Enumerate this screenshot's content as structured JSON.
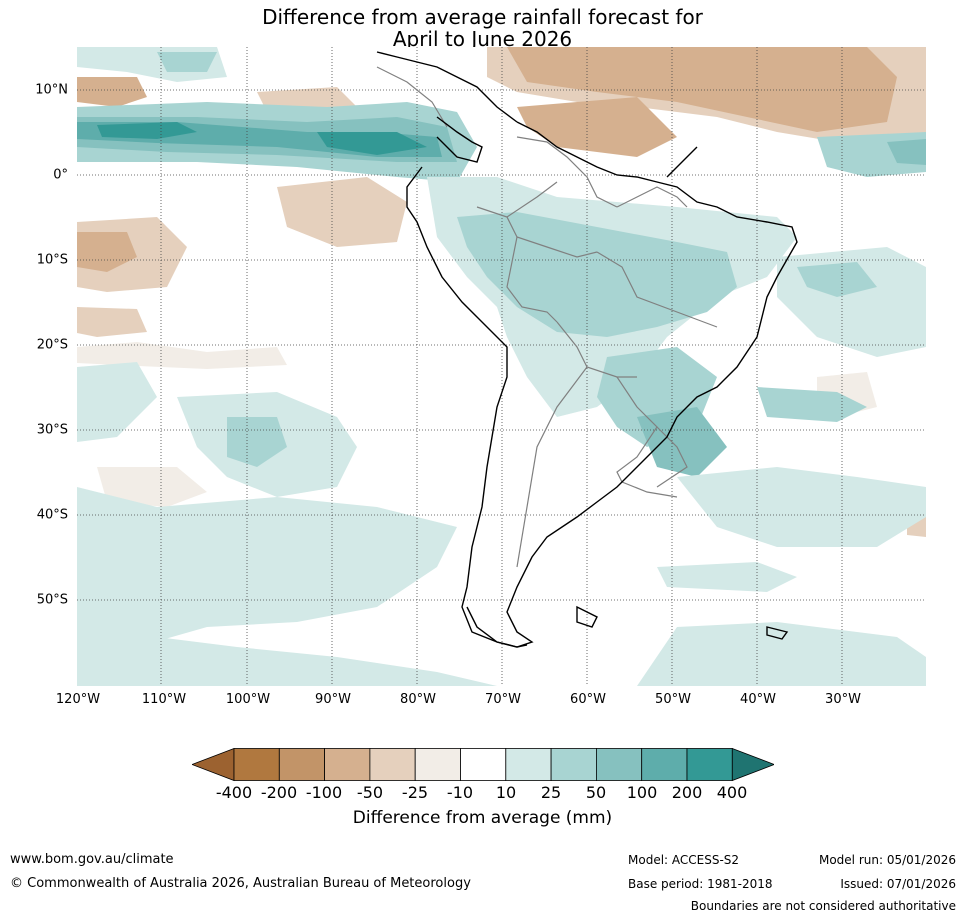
{
  "title_line1": "Difference from average rainfall forecast for",
  "title_line2": "April to June 2026",
  "map": {
    "region": "South America",
    "latitude_labels": [
      "10°N",
      "0°",
      "10°S",
      "20°S",
      "30°S",
      "40°S",
      "50°S"
    ],
    "longitude_labels": [
      "120°W",
      "110°W",
      "100°W",
      "90°W",
      "80°W",
      "70°W",
      "60°W",
      "50°W",
      "40°W",
      "30°W"
    ]
  },
  "legend": {
    "label": "Difference from average (mm)",
    "ticks": [
      "-400",
      "-200",
      "-100",
      "-50",
      "-25",
      "-10",
      "10",
      "25",
      "50",
      "100",
      "200",
      "400"
    ],
    "colors": [
      "#9c6230",
      "#b0783f",
      "#c29468",
      "#d5b08f",
      "#e5d0bd",
      "#f2ede7",
      "#ffffff",
      "#d3e9e7",
      "#a8d4d2",
      "#86c1bf",
      "#5eadab",
      "#339995",
      "#1f7471"
    ]
  },
  "footer": {
    "website": "www.bom.gov.au/climate",
    "copyright": "© Commonwealth of Australia 2026, Australian Bureau of Meteorology",
    "model": "Model: ACCESS-S2",
    "base_period": "Base period: 1981-2018",
    "model_run": "Model run: 05/01/2026",
    "issued": "Issued: 07/01/2026",
    "disclaimer": "Boundaries are not considered authoritative"
  }
}
